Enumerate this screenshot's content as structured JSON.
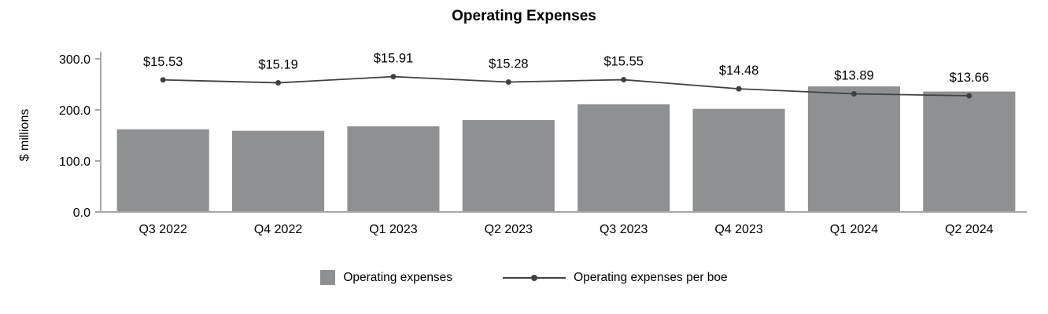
{
  "chart_data": {
    "type": "bar",
    "title": "Operating Expenses",
    "ylabel": "$ millions",
    "categories": [
      "Q3 2022",
      "Q4 2022",
      "Q1 2023",
      "Q2 2023",
      "Q3 2023",
      "Q4 2023",
      "Q1 2024",
      "Q2 2024"
    ],
    "series": [
      {
        "name": "Operating expenses",
        "type": "bar",
        "values": [
          162,
          159,
          168,
          180,
          211,
          202,
          246,
          236
        ]
      },
      {
        "name": "Operating expenses per boe",
        "type": "line",
        "values": [
          15.53,
          15.19,
          15.91,
          15.28,
          15.55,
          14.48,
          13.89,
          13.66
        ],
        "labels": [
          "$15.53",
          "$15.19",
          "$15.91",
          "$15.28",
          "$15.55",
          "$14.48",
          "$13.89",
          "$13.66"
        ]
      }
    ],
    "ylim": [
      0,
      300
    ],
    "yticks": [
      {
        "v": 0,
        "label": "0.0"
      },
      {
        "v": 100,
        "label": "100.0"
      },
      {
        "v": 200,
        "label": "200.0"
      },
      {
        "v": 300,
        "label": "300.0"
      }
    ],
    "line_ylim": [
      0,
      18
    ],
    "grid": false,
    "legend_position": "bottom",
    "colors": {
      "bar": "#8e9092",
      "line": "#404040",
      "axis": "#a6a6a6",
      "text": "#000000"
    }
  }
}
